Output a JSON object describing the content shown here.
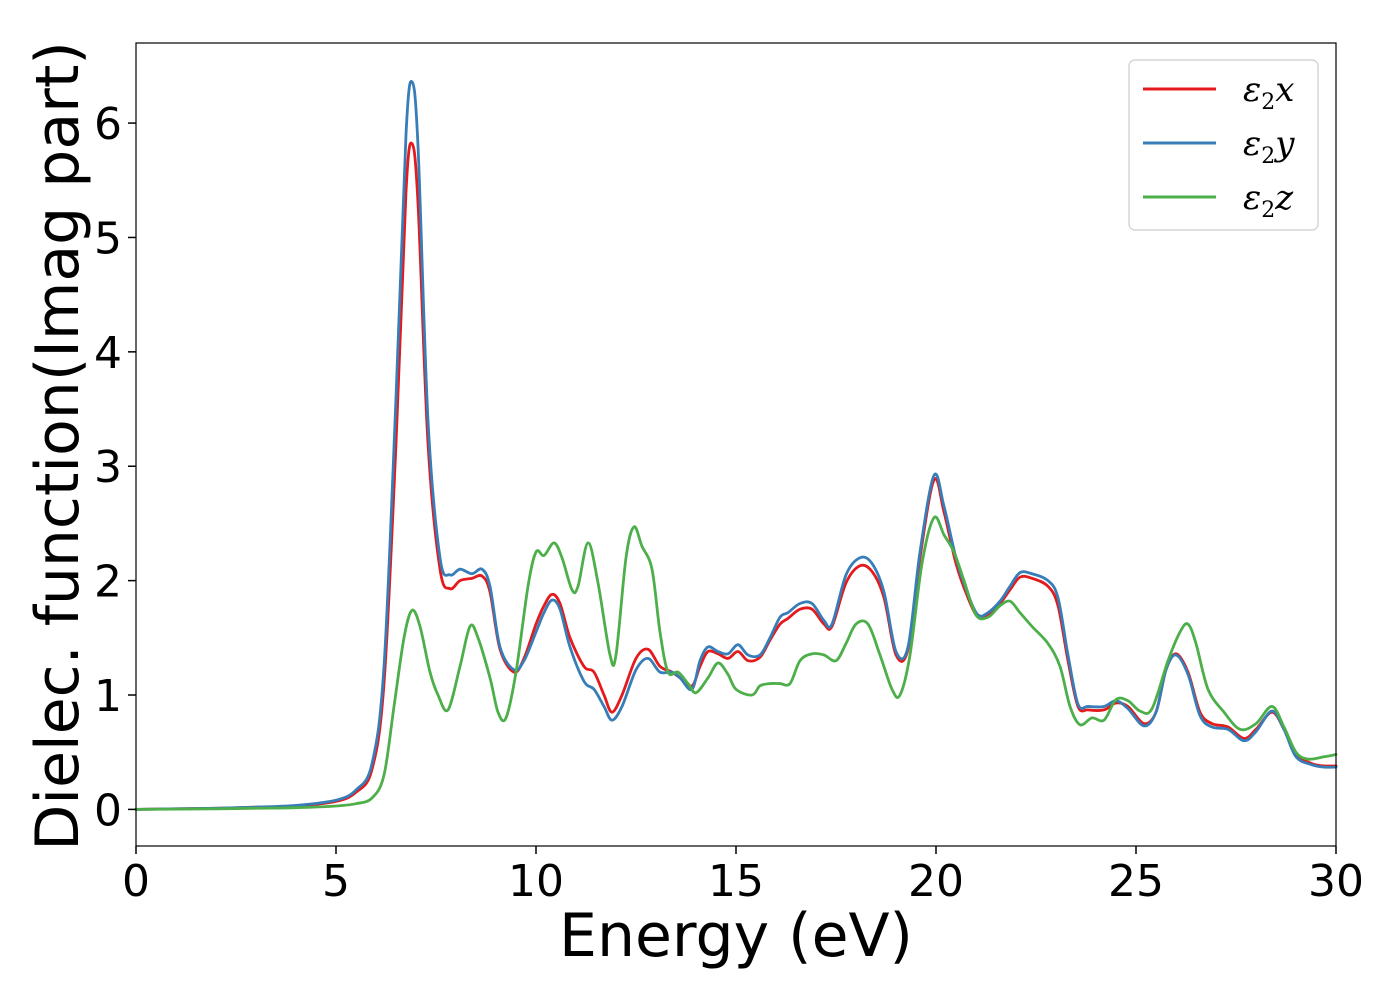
{
  "chart_data": {
    "type": "line",
    "xlabel": "Energy (eV)",
    "ylabel": "Dielec. function(Imag part)",
    "xlim": [
      0,
      30
    ],
    "ylim": [
      -0.32,
      6.7
    ],
    "xticks": [
      0,
      5,
      10,
      15,
      20,
      25,
      30
    ],
    "yticks": [
      0,
      1,
      2,
      3,
      4,
      5,
      6
    ],
    "grid": false,
    "legend_position": "top-right",
    "series": [
      {
        "name": "ε₂x",
        "legend_base": "ε",
        "legend_sub": "2",
        "legend_suffix": "x",
        "color": "#e41a1c",
        "points": [
          [
            0,
            0
          ],
          [
            2,
            0.01
          ],
          [
            3,
            0.02
          ],
          [
            4,
            0.03
          ],
          [
            5,
            0.07
          ],
          [
            5.5,
            0.15
          ],
          [
            5.9,
            0.35
          ],
          [
            6.2,
            1.1
          ],
          [
            6.5,
            3.2
          ],
          [
            6.75,
            5.4
          ],
          [
            6.9,
            5.82
          ],
          [
            7.05,
            5.3
          ],
          [
            7.3,
            3.2
          ],
          [
            7.6,
            2.1
          ],
          [
            7.85,
            1.93
          ],
          [
            8.1,
            2.0
          ],
          [
            8.4,
            2.02
          ],
          [
            8.65,
            2.04
          ],
          [
            8.85,
            1.9
          ],
          [
            9.1,
            1.4
          ],
          [
            9.45,
            1.2
          ],
          [
            9.7,
            1.32
          ],
          [
            10.0,
            1.62
          ],
          [
            10.2,
            1.78
          ],
          [
            10.4,
            1.88
          ],
          [
            10.6,
            1.8
          ],
          [
            10.85,
            1.5
          ],
          [
            11.2,
            1.25
          ],
          [
            11.45,
            1.2
          ],
          [
            11.7,
            1.0
          ],
          [
            11.9,
            0.85
          ],
          [
            12.15,
            1.0
          ],
          [
            12.5,
            1.32
          ],
          [
            12.8,
            1.4
          ],
          [
            13.1,
            1.25
          ],
          [
            13.4,
            1.2
          ],
          [
            13.6,
            1.15
          ],
          [
            13.9,
            1.08
          ],
          [
            14.1,
            1.25
          ],
          [
            14.3,
            1.38
          ],
          [
            14.55,
            1.36
          ],
          [
            14.8,
            1.32
          ],
          [
            15.05,
            1.38
          ],
          [
            15.3,
            1.3
          ],
          [
            15.6,
            1.33
          ],
          [
            15.85,
            1.48
          ],
          [
            16.1,
            1.62
          ],
          [
            16.3,
            1.67
          ],
          [
            16.6,
            1.75
          ],
          [
            16.9,
            1.75
          ],
          [
            17.2,
            1.62
          ],
          [
            17.4,
            1.6
          ],
          [
            17.75,
            1.98
          ],
          [
            18.1,
            2.13
          ],
          [
            18.4,
            2.08
          ],
          [
            18.7,
            1.85
          ],
          [
            19.0,
            1.35
          ],
          [
            19.3,
            1.4
          ],
          [
            19.6,
            2.2
          ],
          [
            19.95,
            2.88
          ],
          [
            20.2,
            2.6
          ],
          [
            20.5,
            2.15
          ],
          [
            20.8,
            1.85
          ],
          [
            21.05,
            1.68
          ],
          [
            21.3,
            1.7
          ],
          [
            21.6,
            1.8
          ],
          [
            21.85,
            1.92
          ],
          [
            22.1,
            2.03
          ],
          [
            22.4,
            2.02
          ],
          [
            22.8,
            1.95
          ],
          [
            23.05,
            1.78
          ],
          [
            23.3,
            1.3
          ],
          [
            23.55,
            0.9
          ],
          [
            23.8,
            0.87
          ],
          [
            24.2,
            0.87
          ],
          [
            24.5,
            0.93
          ],
          [
            24.8,
            0.9
          ],
          [
            25.2,
            0.75
          ],
          [
            25.5,
            0.85
          ],
          [
            25.75,
            1.22
          ],
          [
            26.0,
            1.36
          ],
          [
            26.3,
            1.2
          ],
          [
            26.6,
            0.85
          ],
          [
            26.9,
            0.75
          ],
          [
            27.3,
            0.72
          ],
          [
            27.7,
            0.62
          ],
          [
            28.0,
            0.7
          ],
          [
            28.4,
            0.85
          ],
          [
            28.7,
            0.7
          ],
          [
            29.0,
            0.48
          ],
          [
            29.4,
            0.4
          ],
          [
            29.7,
            0.38
          ],
          [
            30,
            0.38
          ]
        ]
      },
      {
        "name": "ε₂y",
        "legend_base": "ε",
        "legend_sub": "2",
        "legend_suffix": "y",
        "color": "#377eb8",
        "points": [
          [
            0,
            0
          ],
          [
            2,
            0.01
          ],
          [
            3,
            0.02
          ],
          [
            4,
            0.035
          ],
          [
            5,
            0.08
          ],
          [
            5.5,
            0.17
          ],
          [
            5.9,
            0.4
          ],
          [
            6.2,
            1.25
          ],
          [
            6.5,
            3.6
          ],
          [
            6.75,
            5.9
          ],
          [
            6.9,
            6.36
          ],
          [
            7.05,
            5.8
          ],
          [
            7.3,
            3.4
          ],
          [
            7.6,
            2.2
          ],
          [
            7.85,
            2.05
          ],
          [
            8.1,
            2.1
          ],
          [
            8.4,
            2.06
          ],
          [
            8.65,
            2.1
          ],
          [
            8.85,
            1.95
          ],
          [
            9.1,
            1.42
          ],
          [
            9.45,
            1.22
          ],
          [
            9.7,
            1.3
          ],
          [
            10.0,
            1.55
          ],
          [
            10.2,
            1.72
          ],
          [
            10.4,
            1.83
          ],
          [
            10.6,
            1.75
          ],
          [
            10.85,
            1.42
          ],
          [
            11.2,
            1.12
          ],
          [
            11.45,
            1.05
          ],
          [
            11.7,
            0.9
          ],
          [
            11.9,
            0.78
          ],
          [
            12.15,
            0.9
          ],
          [
            12.5,
            1.22
          ],
          [
            12.8,
            1.32
          ],
          [
            13.1,
            1.2
          ],
          [
            13.4,
            1.2
          ],
          [
            13.6,
            1.15
          ],
          [
            13.9,
            1.05
          ],
          [
            14.1,
            1.3
          ],
          [
            14.3,
            1.42
          ],
          [
            14.55,
            1.38
          ],
          [
            14.8,
            1.36
          ],
          [
            15.05,
            1.44
          ],
          [
            15.3,
            1.35
          ],
          [
            15.6,
            1.35
          ],
          [
            15.85,
            1.5
          ],
          [
            16.1,
            1.68
          ],
          [
            16.3,
            1.72
          ],
          [
            16.6,
            1.8
          ],
          [
            16.9,
            1.8
          ],
          [
            17.2,
            1.65
          ],
          [
            17.4,
            1.62
          ],
          [
            17.75,
            2.05
          ],
          [
            18.1,
            2.2
          ],
          [
            18.4,
            2.15
          ],
          [
            18.7,
            1.9
          ],
          [
            19.0,
            1.38
          ],
          [
            19.3,
            1.42
          ],
          [
            19.6,
            2.25
          ],
          [
            19.95,
            2.92
          ],
          [
            20.2,
            2.65
          ],
          [
            20.5,
            2.2
          ],
          [
            20.8,
            1.88
          ],
          [
            21.05,
            1.7
          ],
          [
            21.3,
            1.72
          ],
          [
            21.6,
            1.82
          ],
          [
            21.85,
            1.95
          ],
          [
            22.1,
            2.07
          ],
          [
            22.4,
            2.06
          ],
          [
            22.8,
            2.0
          ],
          [
            23.05,
            1.85
          ],
          [
            23.3,
            1.35
          ],
          [
            23.55,
            0.92
          ],
          [
            23.8,
            0.9
          ],
          [
            24.2,
            0.9
          ],
          [
            24.5,
            0.95
          ],
          [
            24.8,
            0.88
          ],
          [
            25.2,
            0.73
          ],
          [
            25.5,
            0.85
          ],
          [
            25.75,
            1.22
          ],
          [
            26.0,
            1.35
          ],
          [
            26.3,
            1.18
          ],
          [
            26.6,
            0.82
          ],
          [
            26.9,
            0.72
          ],
          [
            27.3,
            0.7
          ],
          [
            27.7,
            0.6
          ],
          [
            28.0,
            0.68
          ],
          [
            28.4,
            0.86
          ],
          [
            28.7,
            0.7
          ],
          [
            29.0,
            0.46
          ],
          [
            29.4,
            0.39
          ],
          [
            29.7,
            0.37
          ],
          [
            30,
            0.37
          ]
        ]
      },
      {
        "name": "ε₂z",
        "legend_base": "ε",
        "legend_sub": "2",
        "legend_suffix": "z",
        "color": "#4daf4a",
        "points": [
          [
            0,
            0
          ],
          [
            2,
            0.005
          ],
          [
            3,
            0.01
          ],
          [
            4,
            0.015
          ],
          [
            5,
            0.03
          ],
          [
            5.5,
            0.05
          ],
          [
            5.9,
            0.1
          ],
          [
            6.2,
            0.3
          ],
          [
            6.45,
            0.9
          ],
          [
            6.7,
            1.5
          ],
          [
            6.9,
            1.74
          ],
          [
            7.1,
            1.6
          ],
          [
            7.35,
            1.2
          ],
          [
            7.55,
            1.0
          ],
          [
            7.8,
            0.87
          ],
          [
            8.1,
            1.25
          ],
          [
            8.35,
            1.6
          ],
          [
            8.55,
            1.5
          ],
          [
            8.85,
            1.15
          ],
          [
            9.05,
            0.85
          ],
          [
            9.25,
            0.8
          ],
          [
            9.5,
            1.2
          ],
          [
            9.8,
            1.95
          ],
          [
            10.0,
            2.25
          ],
          [
            10.2,
            2.22
          ],
          [
            10.45,
            2.33
          ],
          [
            10.65,
            2.2
          ],
          [
            10.9,
            1.92
          ],
          [
            11.05,
            1.95
          ],
          [
            11.3,
            2.33
          ],
          [
            11.55,
            1.98
          ],
          [
            11.85,
            1.35
          ],
          [
            12.0,
            1.35
          ],
          [
            12.25,
            2.2
          ],
          [
            12.45,
            2.47
          ],
          [
            12.65,
            2.3
          ],
          [
            12.9,
            2.1
          ],
          [
            13.1,
            1.55
          ],
          [
            13.3,
            1.2
          ],
          [
            13.55,
            1.2
          ],
          [
            13.8,
            1.1
          ],
          [
            14.0,
            1.02
          ],
          [
            14.3,
            1.15
          ],
          [
            14.55,
            1.28
          ],
          [
            14.8,
            1.18
          ],
          [
            15.0,
            1.05
          ],
          [
            15.4,
            1.0
          ],
          [
            15.6,
            1.08
          ],
          [
            15.85,
            1.1
          ],
          [
            16.1,
            1.1
          ],
          [
            16.35,
            1.1
          ],
          [
            16.6,
            1.3
          ],
          [
            16.9,
            1.36
          ],
          [
            17.2,
            1.35
          ],
          [
            17.5,
            1.3
          ],
          [
            17.75,
            1.45
          ],
          [
            18.0,
            1.62
          ],
          [
            18.3,
            1.62
          ],
          [
            18.6,
            1.35
          ],
          [
            18.9,
            1.05
          ],
          [
            19.1,
            1.0
          ],
          [
            19.35,
            1.35
          ],
          [
            19.65,
            2.15
          ],
          [
            19.95,
            2.55
          ],
          [
            20.2,
            2.4
          ],
          [
            20.45,
            2.25
          ],
          [
            20.7,
            2.0
          ],
          [
            21.0,
            1.7
          ],
          [
            21.3,
            1.68
          ],
          [
            21.6,
            1.78
          ],
          [
            21.85,
            1.82
          ],
          [
            22.1,
            1.72
          ],
          [
            22.4,
            1.6
          ],
          [
            22.8,
            1.45
          ],
          [
            23.1,
            1.25
          ],
          [
            23.35,
            0.9
          ],
          [
            23.6,
            0.74
          ],
          [
            23.9,
            0.8
          ],
          [
            24.2,
            0.78
          ],
          [
            24.5,
            0.96
          ],
          [
            24.8,
            0.95
          ],
          [
            25.1,
            0.86
          ],
          [
            25.4,
            0.88
          ],
          [
            25.8,
            1.3
          ],
          [
            26.1,
            1.55
          ],
          [
            26.3,
            1.62
          ],
          [
            26.5,
            1.45
          ],
          [
            26.8,
            1.05
          ],
          [
            27.2,
            0.85
          ],
          [
            27.6,
            0.7
          ],
          [
            28.0,
            0.75
          ],
          [
            28.4,
            0.9
          ],
          [
            28.7,
            0.72
          ],
          [
            29.0,
            0.5
          ],
          [
            29.3,
            0.44
          ],
          [
            29.7,
            0.46
          ],
          [
            30,
            0.48
          ]
        ]
      }
    ]
  }
}
